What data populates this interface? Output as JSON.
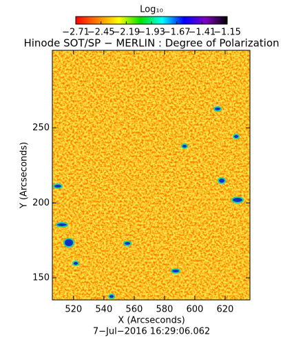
{
  "chart_data": {
    "type": "image",
    "title": "Hinode SOT/SP − MERLIN : Degree of Polarization",
    "xlabel": "X (Arcseconds)",
    "ylabel": "Y (Arcseconds)",
    "footer": "7−Jul−2016 16:29:06.062",
    "xlim": [
      506,
      636.4
    ],
    "ylim": [
      135.3,
      301.8
    ],
    "xticks": [
      520,
      540,
      560,
      580,
      600,
      620
    ],
    "yticks": [
      150,
      200,
      250
    ],
    "colorbar": {
      "title": "Log₁₀",
      "clim": [
        -2.71,
        -1.15
      ],
      "colors": [
        "#ff0000",
        "#ff8000",
        "#ffff00",
        "#00e000",
        "#00ffff",
        "#0000ff",
        "#8000c0",
        "#000000"
      ],
      "ticks": [
        {
          "value": -2.71,
          "label": "−2.71"
        },
        {
          "value": -2.45,
          "label": "−2.45"
        },
        {
          "value": -2.19,
          "label": "−2.19"
        },
        {
          "value": -1.93,
          "label": "−1.93"
        },
        {
          "value": -1.67,
          "label": "−1.67"
        },
        {
          "value": -1.41,
          "label": "−1.41"
        },
        {
          "value": -1.15,
          "label": "−1.15"
        }
      ]
    }
  }
}
